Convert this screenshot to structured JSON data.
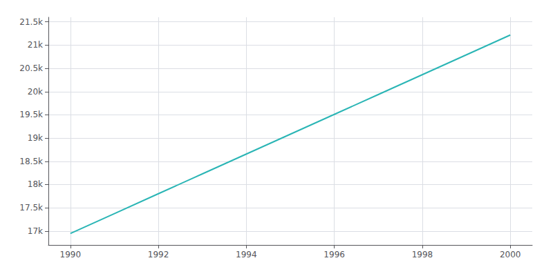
{
  "chart_data": {
    "type": "line",
    "x": [
      1990,
      1991,
      1992,
      1993,
      1994,
      1995,
      1996,
      1997,
      1998,
      1999,
      2000
    ],
    "values": [
      16948,
      17375,
      17802,
      18229,
      18656,
      19083,
      19510,
      19937,
      20364,
      20791,
      21218
    ],
    "color": "#2ab5b5",
    "xlim": [
      1989.5,
      2000.5
    ],
    "ylim": [
      16700,
      21600
    ],
    "xticks": [
      1990,
      1992,
      1994,
      1996,
      1998,
      2000
    ],
    "yticks": [
      {
        "value": 17000,
        "label": "17k"
      },
      {
        "value": 17500,
        "label": "17.5k"
      },
      {
        "value": 18000,
        "label": "18k"
      },
      {
        "value": 18500,
        "label": "18.5k"
      },
      {
        "value": 19000,
        "label": "19k"
      },
      {
        "value": 19500,
        "label": "19.5k"
      },
      {
        "value": 20000,
        "label": "20k"
      },
      {
        "value": 20500,
        "label": "20.5k"
      },
      {
        "value": 21000,
        "label": "21k"
      },
      {
        "value": 21500,
        "label": "21.5k"
      }
    ],
    "grid": true
  }
}
